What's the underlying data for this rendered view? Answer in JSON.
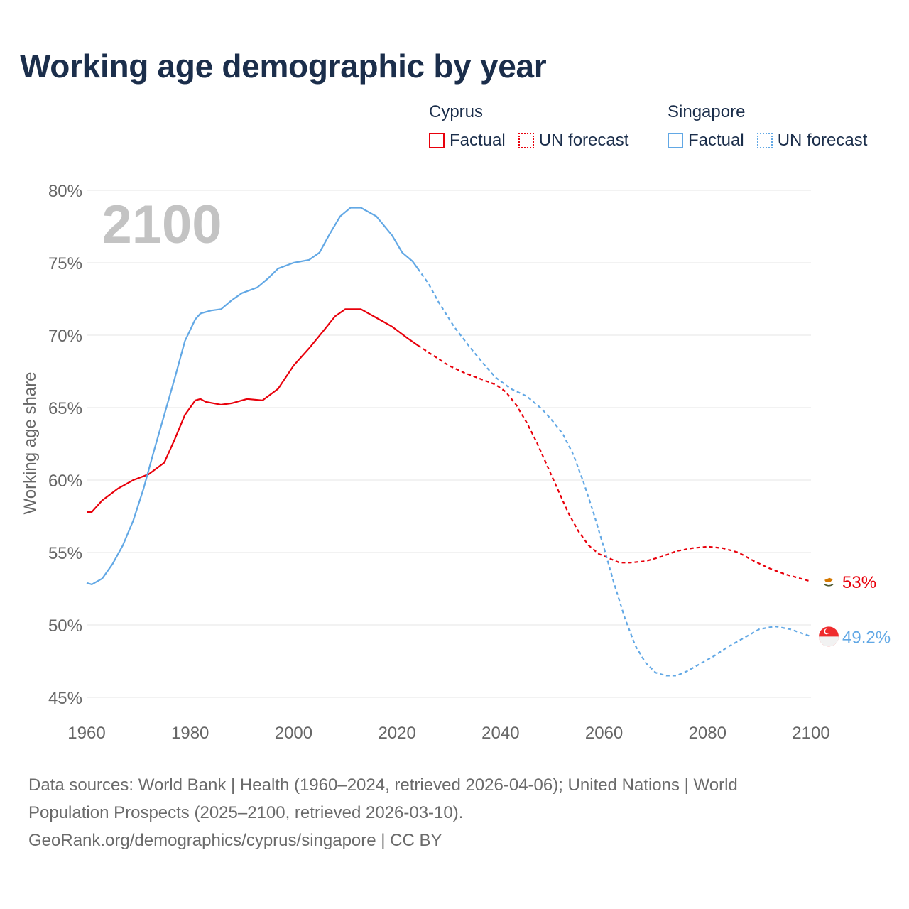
{
  "page": {
    "title": "Working age demographic by year"
  },
  "legend": {
    "groups": [
      {
        "name": "Cyprus",
        "factual": "Factual",
        "forecast": "UN forecast",
        "color": "#e8000b"
      },
      {
        "name": "Singapore",
        "factual": "Factual",
        "forecast": "UN forecast",
        "color": "#62a8e5"
      }
    ]
  },
  "chart_data": {
    "type": "line",
    "title": "Working age demographic by year",
    "ylabel": "Working age share",
    "xlabel": "",
    "xlim": [
      1960,
      2100
    ],
    "ylim": [
      45,
      80
    ],
    "yticks": [
      "45%",
      "50%",
      "55%",
      "60%",
      "65%",
      "70%",
      "75%",
      "80%"
    ],
    "ytick_values": [
      45,
      50,
      55,
      60,
      65,
      70,
      75,
      80
    ],
    "xticks": [
      "1960",
      "1980",
      "2000",
      "2020",
      "2040",
      "2060",
      "2080",
      "2100"
    ],
    "xtick_values": [
      1960,
      1980,
      2000,
      2020,
      2040,
      2060,
      2080,
      2100
    ],
    "grid": true,
    "year_overlay": "2100",
    "factual_until": 2024,
    "series": [
      {
        "name": "Cyprus",
        "color": "#e8000b",
        "end_label": "53%",
        "points": [
          [
            1960,
            57.8
          ],
          [
            1961,
            57.8
          ],
          [
            1963,
            58.6
          ],
          [
            1966,
            59.4
          ],
          [
            1969,
            60.0
          ],
          [
            1972,
            60.4
          ],
          [
            1975,
            61.2
          ],
          [
            1977,
            62.8
          ],
          [
            1979,
            64.5
          ],
          [
            1981,
            65.5
          ],
          [
            1982,
            65.6
          ],
          [
            1983,
            65.4
          ],
          [
            1986,
            65.2
          ],
          [
            1988,
            65.3
          ],
          [
            1991,
            65.6
          ],
          [
            1994,
            65.5
          ],
          [
            1997,
            66.3
          ],
          [
            2000,
            67.9
          ],
          [
            2003,
            69.1
          ],
          [
            2006,
            70.4
          ],
          [
            2008,
            71.3
          ],
          [
            2010,
            71.8
          ],
          [
            2013,
            71.8
          ],
          [
            2016,
            71.2
          ],
          [
            2019,
            70.6
          ],
          [
            2022,
            69.8
          ],
          [
            2024,
            69.3
          ],
          [
            2027,
            68.6
          ],
          [
            2030,
            67.9
          ],
          [
            2033,
            67.4
          ],
          [
            2036,
            67.0
          ],
          [
            2039,
            66.6
          ],
          [
            2041,
            66.1
          ],
          [
            2043,
            65.2
          ],
          [
            2045,
            64.0
          ],
          [
            2047,
            62.6
          ],
          [
            2049,
            61.0
          ],
          [
            2051,
            59.4
          ],
          [
            2053,
            57.8
          ],
          [
            2055,
            56.5
          ],
          [
            2057,
            55.5
          ],
          [
            2059,
            54.9
          ],
          [
            2061,
            54.6
          ],
          [
            2063,
            54.3
          ],
          [
            2065,
            54.3
          ],
          [
            2068,
            54.4
          ],
          [
            2071,
            54.7
          ],
          [
            2074,
            55.1
          ],
          [
            2077,
            55.3
          ],
          [
            2080,
            55.4
          ],
          [
            2083,
            55.3
          ],
          [
            2086,
            55.0
          ],
          [
            2089,
            54.4
          ],
          [
            2092,
            53.9
          ],
          [
            2095,
            53.5
          ],
          [
            2098,
            53.2
          ],
          [
            2100,
            53.0
          ]
        ]
      },
      {
        "name": "Singapore",
        "color": "#62a8e5",
        "end_label": "49.2%",
        "points": [
          [
            1960,
            52.9
          ],
          [
            1961,
            52.8
          ],
          [
            1963,
            53.2
          ],
          [
            1965,
            54.2
          ],
          [
            1967,
            55.5
          ],
          [
            1969,
            57.2
          ],
          [
            1971,
            59.4
          ],
          [
            1973,
            62.0
          ],
          [
            1975,
            64.5
          ],
          [
            1977,
            67.0
          ],
          [
            1979,
            69.6
          ],
          [
            1981,
            71.1
          ],
          [
            1982,
            71.5
          ],
          [
            1984,
            71.7
          ],
          [
            1986,
            71.8
          ],
          [
            1988,
            72.4
          ],
          [
            1990,
            72.9
          ],
          [
            1993,
            73.3
          ],
          [
            1995,
            73.9
          ],
          [
            1997,
            74.6
          ],
          [
            2000,
            75.0
          ],
          [
            2003,
            75.2
          ],
          [
            2005,
            75.7
          ],
          [
            2007,
            77.0
          ],
          [
            2009,
            78.2
          ],
          [
            2011,
            78.8
          ],
          [
            2013,
            78.8
          ],
          [
            2016,
            78.2
          ],
          [
            2019,
            76.9
          ],
          [
            2021,
            75.7
          ],
          [
            2023,
            75.1
          ],
          [
            2024,
            74.6
          ],
          [
            2026,
            73.6
          ],
          [
            2028,
            72.3
          ],
          [
            2031,
            70.6
          ],
          [
            2034,
            69.2
          ],
          [
            2037,
            67.9
          ],
          [
            2039,
            67.1
          ],
          [
            2042,
            66.3
          ],
          [
            2045,
            65.8
          ],
          [
            2048,
            64.9
          ],
          [
            2050,
            64.1
          ],
          [
            2052,
            63.2
          ],
          [
            2054,
            61.8
          ],
          [
            2056,
            59.9
          ],
          [
            2058,
            57.7
          ],
          [
            2060,
            55.3
          ],
          [
            2062,
            52.8
          ],
          [
            2064,
            50.5
          ],
          [
            2066,
            48.6
          ],
          [
            2068,
            47.4
          ],
          [
            2070,
            46.7
          ],
          [
            2072,
            46.5
          ],
          [
            2074,
            46.5
          ],
          [
            2076,
            46.8
          ],
          [
            2078,
            47.2
          ],
          [
            2081,
            47.8
          ],
          [
            2084,
            48.5
          ],
          [
            2087,
            49.1
          ],
          [
            2090,
            49.7
          ],
          [
            2093,
            49.9
          ],
          [
            2096,
            49.7
          ],
          [
            2100,
            49.2
          ]
        ]
      }
    ]
  },
  "footer": {
    "source_line1": "Data sources: World Bank | Health (1960–2024, retrieved 2026-04-06); United Nations | World",
    "source_line2": "Population Prospects (2025–2100, retrieved 2026-03-10).",
    "source_line3": "GeoRank.org/demographics/cyprus/singapore | CC BY"
  }
}
